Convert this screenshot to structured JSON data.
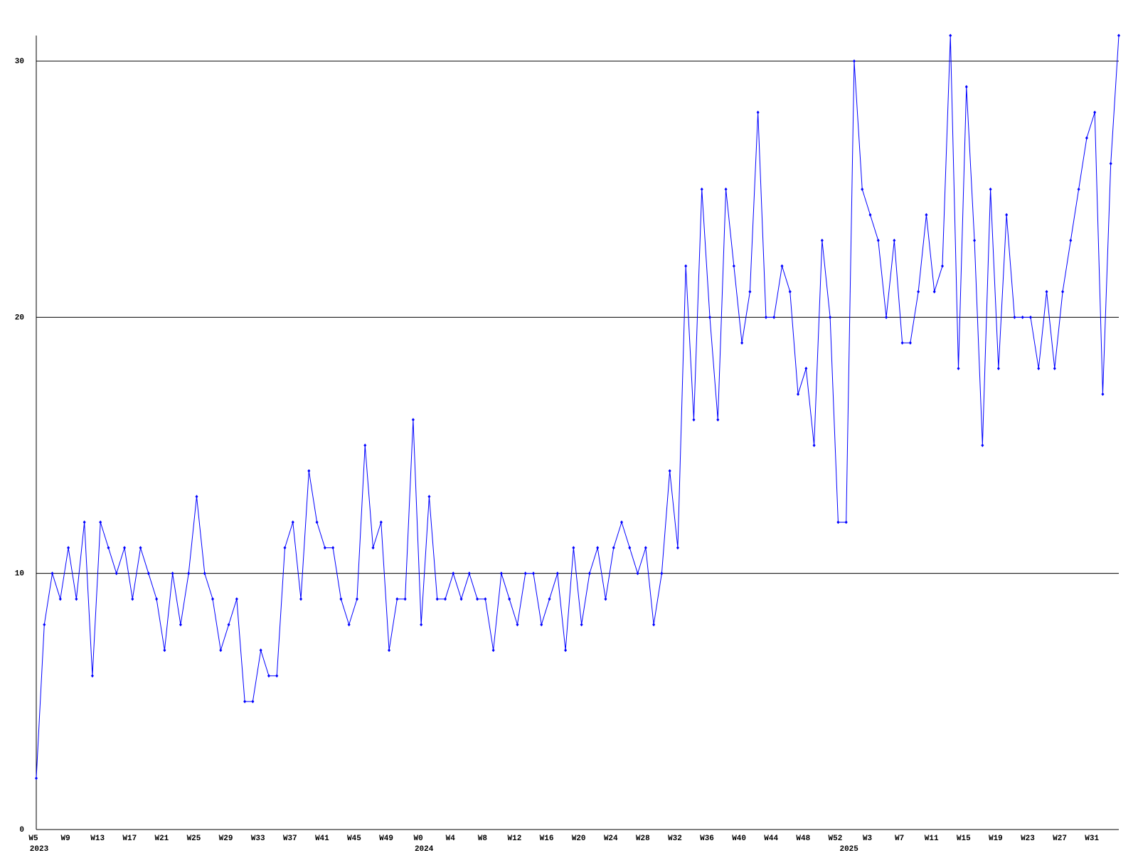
{
  "chart_data": {
    "type": "line",
    "categories": [
      "W5",
      null,
      null,
      null,
      "W9",
      null,
      null,
      null,
      "W13",
      null,
      null,
      null,
      "W17",
      null,
      null,
      null,
      "W21",
      null,
      null,
      null,
      "W25",
      null,
      null,
      null,
      "W29",
      null,
      null,
      null,
      "W33",
      null,
      null,
      null,
      "W37",
      null,
      null,
      null,
      "W41",
      null,
      null,
      null,
      "W45",
      null,
      null,
      null,
      "W49",
      null,
      null,
      null,
      "W0",
      null,
      null,
      null,
      "W4",
      null,
      null,
      null,
      "W8",
      null,
      null,
      null,
      "W12",
      null,
      null,
      null,
      "W16",
      null,
      null,
      null,
      "W20",
      null,
      null,
      null,
      "W24",
      null,
      null,
      null,
      "W28",
      null,
      null,
      null,
      "W32",
      null,
      null,
      null,
      "W36",
      null,
      null,
      null,
      "W40",
      null,
      null,
      null,
      "W44",
      null,
      null,
      null,
      "W48",
      null,
      null,
      null,
      "W52",
      null,
      null,
      null,
      "W3",
      null,
      null,
      null,
      "W7",
      null,
      null,
      null,
      "W11",
      null,
      null,
      null,
      "W15",
      null,
      null,
      null,
      "W19",
      null,
      null,
      null,
      "W23",
      null,
      null,
      null,
      "W27",
      null,
      null,
      null,
      "W31",
      null,
      null,
      null
    ],
    "year_labels": [
      "2023",
      null,
      null,
      null,
      null,
      null,
      null,
      null,
      null,
      null,
      null,
      null,
      null,
      null,
      null,
      null,
      null,
      null,
      null,
      null,
      null,
      null,
      null,
      null,
      null,
      null,
      null,
      null,
      null,
      null,
      null,
      null,
      null,
      null,
      null,
      null,
      null,
      null,
      null,
      null,
      null,
      null,
      null,
      null,
      null,
      null,
      null,
      null,
      "2024",
      null,
      null,
      null,
      null,
      null,
      null,
      null,
      null,
      null,
      null,
      null,
      null,
      null,
      null,
      null,
      null,
      null,
      null,
      null,
      null,
      null,
      null,
      null,
      null,
      null,
      null,
      null,
      null,
      null,
      null,
      null,
      null,
      null,
      null,
      null,
      null,
      null,
      null,
      null,
      null,
      null,
      null,
      null,
      null,
      null,
      null,
      null,
      null,
      null,
      null,
      null,
      null,
      "2025",
      null,
      null,
      null,
      null,
      null,
      null,
      null,
      null,
      null,
      null,
      null,
      null,
      null,
      null,
      null,
      null,
      null,
      null,
      null,
      null,
      null,
      null,
      null,
      null,
      null,
      null,
      null,
      null,
      null,
      null,
      null,
      null,
      null,
      null
    ],
    "series": [
      {
        "color": "#0000ff",
        "values": [
          2,
          8,
          10,
          9,
          11,
          9,
          12,
          6,
          12,
          11,
          10,
          11,
          9,
          11,
          10,
          9,
          7,
          10,
          8,
          10,
          13,
          10,
          9,
          7,
          8,
          9,
          5,
          5,
          7,
          6,
          6,
          11,
          12,
          9,
          14,
          12,
          11,
          11,
          9,
          8,
          9,
          15,
          11,
          12,
          7,
          9,
          9,
          16,
          8,
          13,
          9,
          9,
          10,
          9,
          10,
          9,
          9,
          7,
          10,
          9,
          8,
          10,
          10,
          8,
          9,
          10,
          7,
          11,
          8,
          10,
          11,
          9,
          11,
          12,
          11,
          10,
          11,
          8,
          10,
          14,
          11,
          22,
          16,
          25,
          20,
          16,
          25,
          22,
          19,
          21,
          28,
          20,
          20,
          22,
          21,
          17,
          18,
          15,
          23,
          20,
          12,
          12,
          30,
          25,
          24,
          23,
          20,
          23,
          19,
          19,
          21,
          24,
          21,
          22,
          31,
          18,
          29,
          23,
          15,
          25,
          18,
          24,
          20,
          20,
          20,
          18,
          21,
          18,
          21,
          23,
          25,
          27,
          28,
          17,
          26,
          31
        ]
      }
    ],
    "ylim": [
      0,
      31
    ],
    "yticks": [
      0,
      10,
      20,
      30
    ],
    "grid": true
  }
}
